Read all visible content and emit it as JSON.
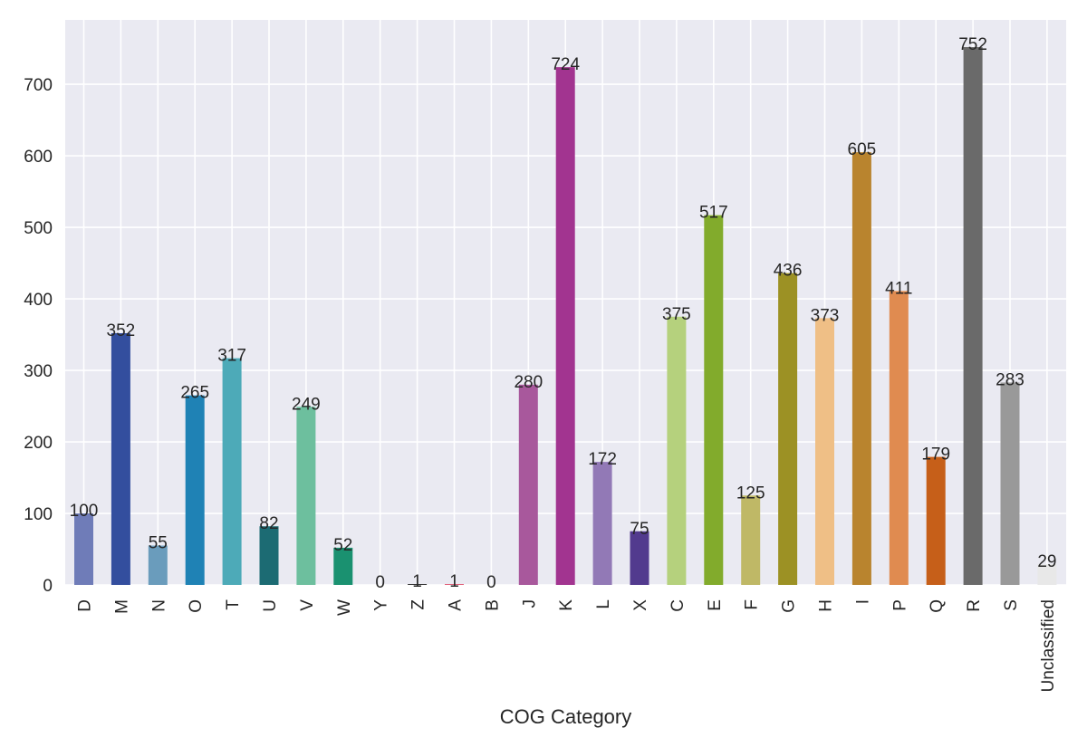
{
  "chart_data": {
    "type": "bar",
    "title": "",
    "xlabel": "COG Category",
    "ylabel": "",
    "categories": [
      "D",
      "M",
      "N",
      "O",
      "T",
      "U",
      "V",
      "W",
      "Y",
      "Z",
      "A",
      "B",
      "J",
      "K",
      "L",
      "X",
      "C",
      "E",
      "F",
      "G",
      "H",
      "I",
      "P",
      "Q",
      "R",
      "S",
      "Unclassified"
    ],
    "values": [
      100,
      352,
      55,
      265,
      317,
      82,
      249,
      52,
      0,
      1,
      1,
      0,
      280,
      724,
      172,
      75,
      375,
      517,
      125,
      436,
      373,
      605,
      411,
      179,
      752,
      283,
      29
    ],
    "colors": [
      "#6f7cb8",
      "#334e9e",
      "#6a9cbc",
      "#1f82b5",
      "#4daab8",
      "#1c6b73",
      "#6dbf9e",
      "#1a9170",
      "#2a6a3e",
      "#333333",
      "#e0607a",
      "#a0a0a0",
      "#a8589c",
      "#a23490",
      "#9279b6",
      "#523a8e",
      "#b5d17d",
      "#82ab2c",
      "#bfb866",
      "#9c9124",
      "#efbf86",
      "#b9842e",
      "#e08b50",
      "#c65f19",
      "#6a6a6a",
      "#999999",
      "#e8e8e8"
    ],
    "ylim": [
      0,
      790
    ],
    "yticks": [
      0,
      100,
      200,
      300,
      400,
      500,
      600,
      700
    ],
    "grid": true
  }
}
